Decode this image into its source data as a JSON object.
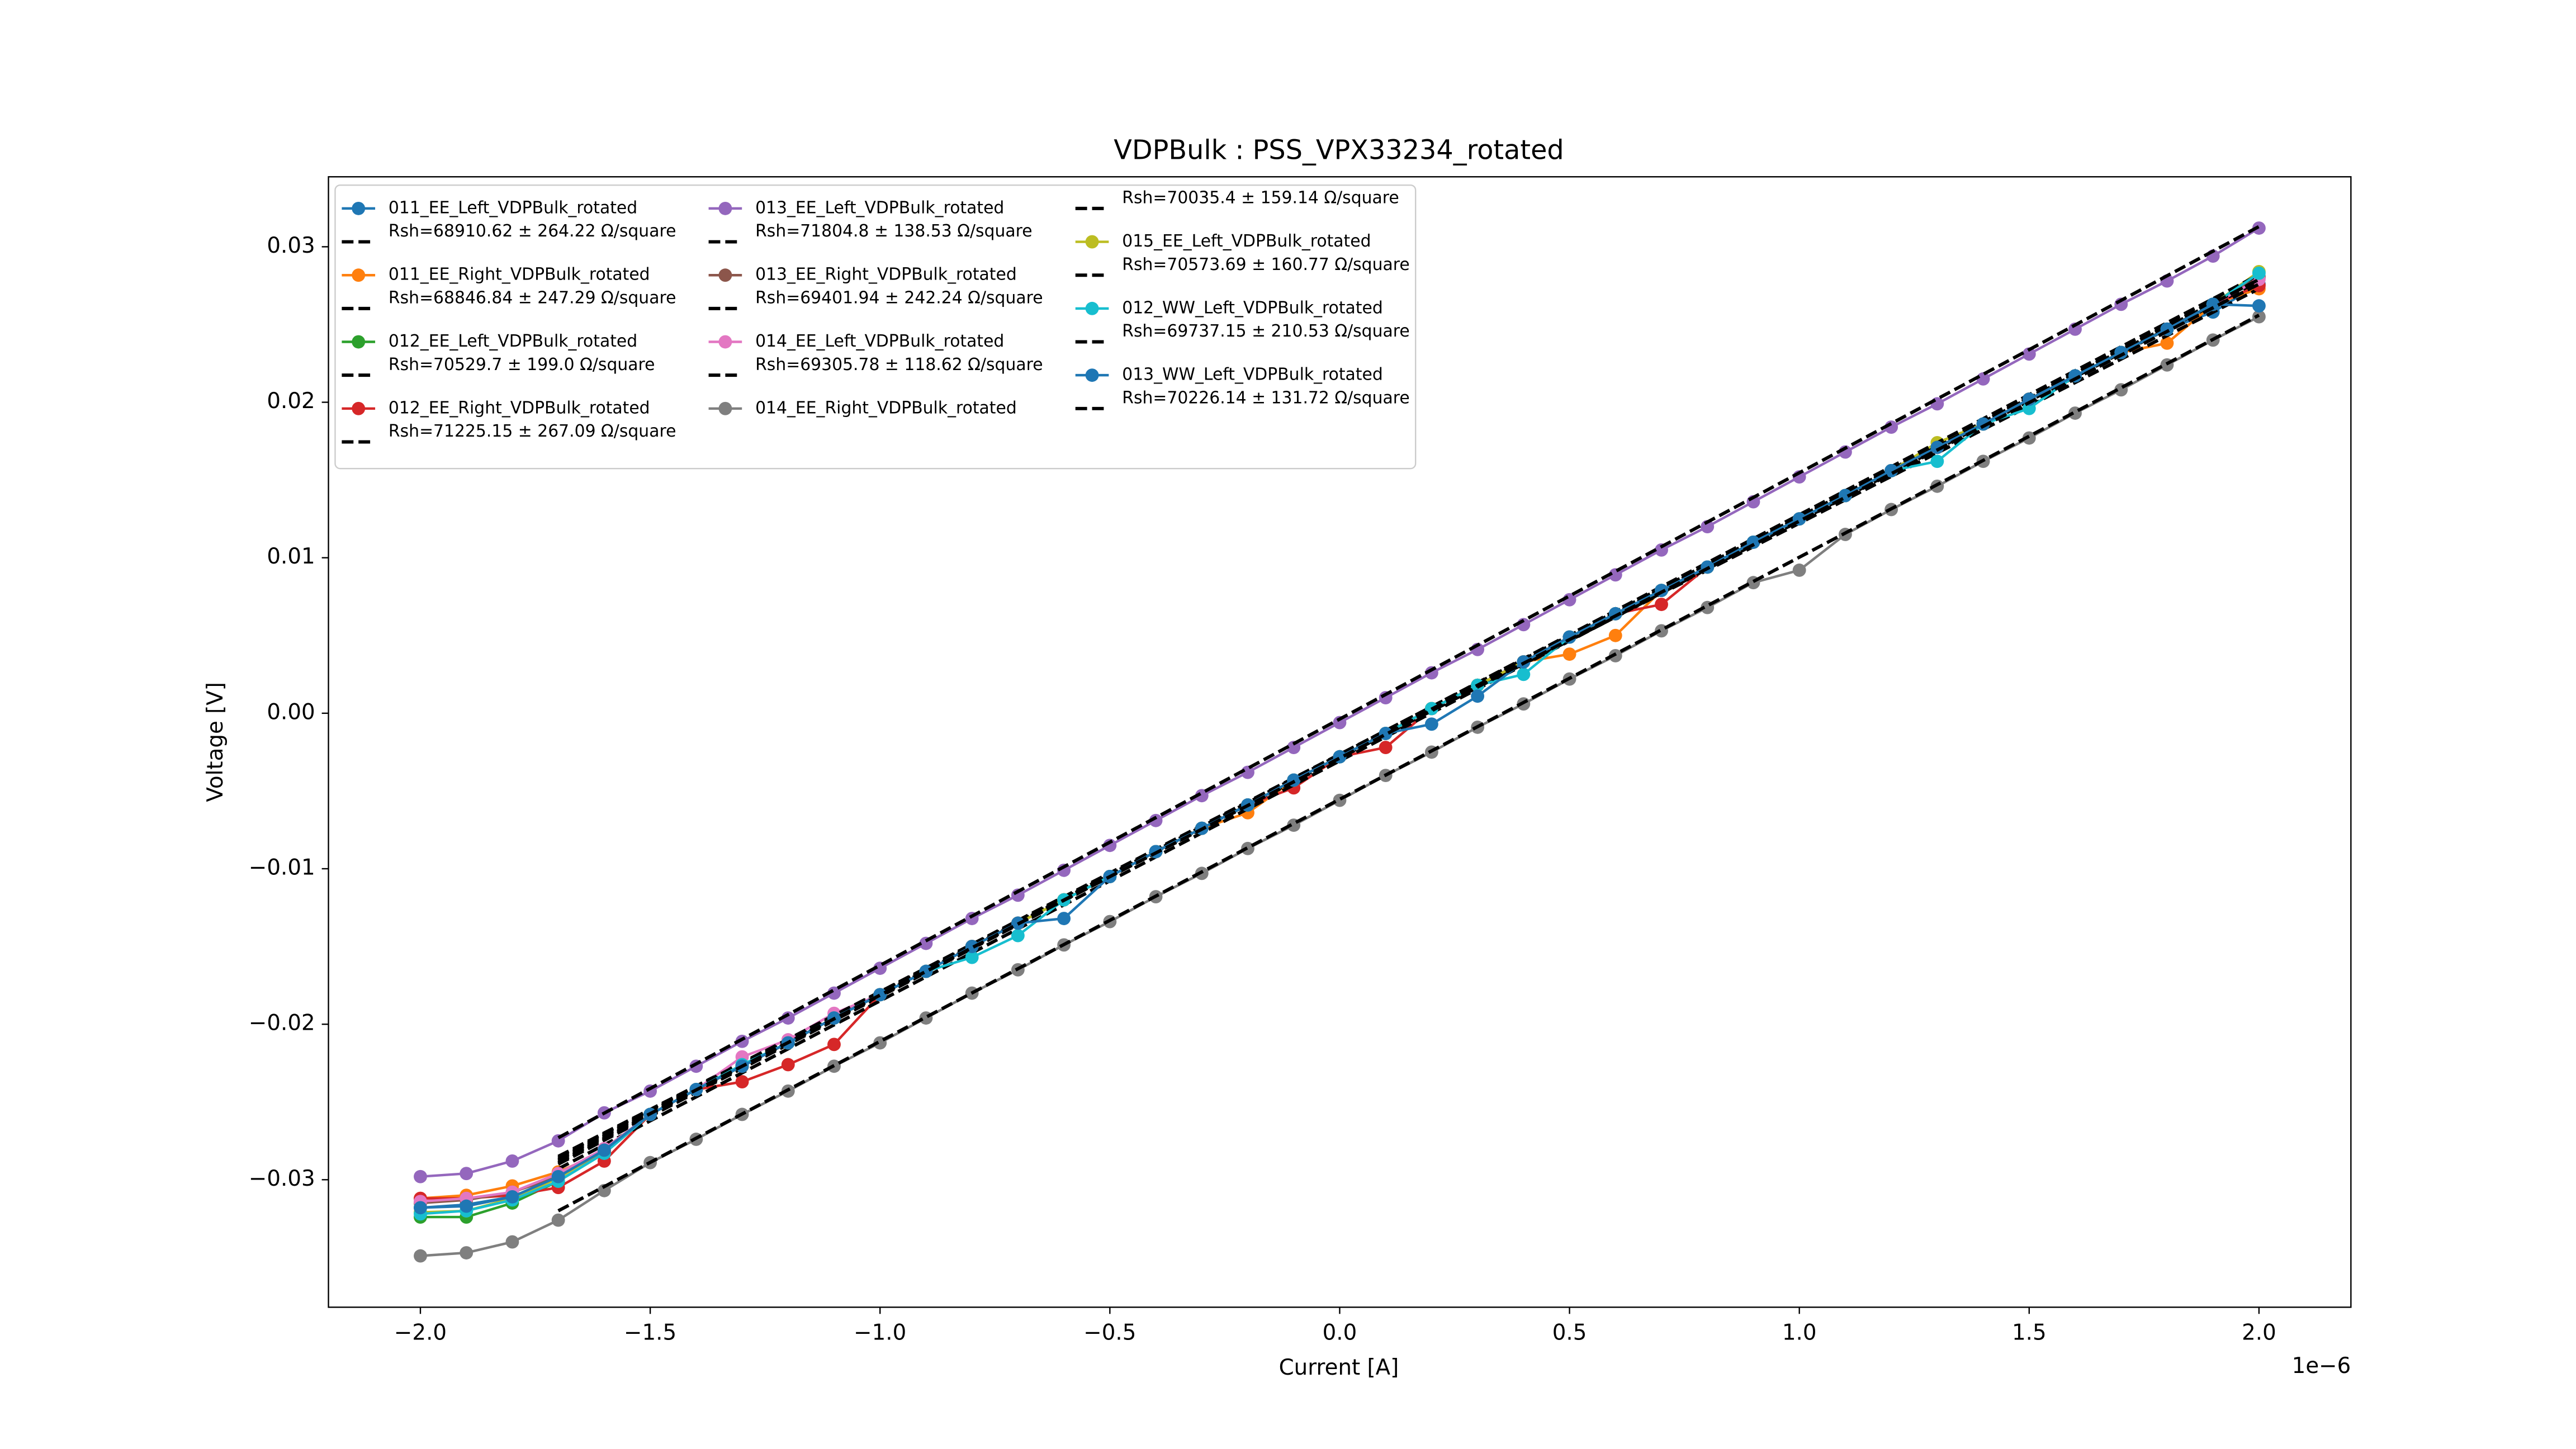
{
  "chart_data": {
    "type": "line",
    "title": "VDPBulk : PSS_VPX33234_rotated",
    "x_label": "Current [A]",
    "y_label": "Voltage [V]",
    "x_offset_label": "1e−6",
    "x": [
      -2.0,
      -1.9,
      -1.8,
      -1.7,
      -1.6,
      -1.5,
      -1.4,
      -1.3,
      -1.2,
      -1.1,
      -1.0,
      -0.9,
      -0.8,
      -0.7,
      -0.6,
      -0.5,
      -0.4,
      -0.3,
      -0.2,
      -0.1,
      0.0,
      0.1,
      0.2,
      0.3,
      0.4,
      0.5,
      0.6,
      0.7,
      0.8,
      0.9,
      1.0,
      1.1,
      1.2,
      1.3,
      1.4,
      1.5,
      1.6,
      1.7,
      1.8,
      1.9,
      2.0
    ],
    "xlim": [
      -2.2,
      2.2
    ],
    "xticks": [
      {
        "value": -2.0,
        "label": "−2.0"
      },
      {
        "value": -1.5,
        "label": "−1.5"
      },
      {
        "value": -1.0,
        "label": "−1.0"
      },
      {
        "value": -0.5,
        "label": "−0.5"
      },
      {
        "value": 0.0,
        "label": "0.0"
      },
      {
        "value": 0.5,
        "label": "0.5"
      },
      {
        "value": 1.0,
        "label": "1.0"
      },
      {
        "value": 1.5,
        "label": "1.5"
      },
      {
        "value": 2.0,
        "label": "2.0"
      }
    ],
    "ylim": [
      -0.0382,
      0.0345
    ],
    "yticks": [
      {
        "value": -0.03,
        "label": "−0.03"
      },
      {
        "value": -0.02,
        "label": "−0.02"
      },
      {
        "value": -0.01,
        "label": "−0.01"
      },
      {
        "value": 0.0,
        "label": "0.00"
      },
      {
        "value": 0.01,
        "label": "0.01"
      },
      {
        "value": 0.02,
        "label": "0.02"
      },
      {
        "value": 0.03,
        "label": "0.03"
      }
    ],
    "grid": false,
    "legend": "upper left",
    "legend_columns": 3,
    "fit_color": "#000000",
    "series": [
      {
        "name": "011_EE_Left_VDPBulk_rotated",
        "color": "#1f77b4",
        "values": [
          -0.0318,
          -0.0316,
          -0.0311,
          -0.0298,
          -0.0282,
          -0.0258,
          -0.0242,
          -0.0227,
          -0.0212,
          -0.0196,
          -0.0181,
          -0.0166,
          -0.015,
          -0.0135,
          -0.012,
          -0.0105,
          -0.0089,
          -0.0074,
          -0.0059,
          -0.0043,
          -0.0028,
          -0.0013,
          0.0003,
          0.0018,
          0.0033,
          0.0049,
          0.0064,
          0.0079,
          0.0094,
          0.011,
          0.0125,
          0.014,
          0.0156,
          0.0171,
          0.0186,
          0.0202,
          0.0217,
          0.0232,
          0.0247,
          0.0258,
          0.0276
        ],
        "fit": {
          "name": "Rsh=68910.62 ± 264.22 Ω/square",
          "x": [
            -1.7,
            2.0
          ],
          "values": [
            -0.0287,
            0.0276
          ]
        }
      },
      {
        "name": "011_EE_Right_VDPBulk_rotated",
        "color": "#ff7f0e",
        "values": [
          -0.0312,
          -0.031,
          -0.0304,
          -0.0295,
          -0.0282,
          -0.0258,
          -0.0242,
          -0.0227,
          -0.0212,
          -0.0196,
          -0.0181,
          -0.0166,
          -0.015,
          -0.0135,
          -0.012,
          -0.0105,
          -0.0089,
          -0.0074,
          -0.0064,
          -0.0043,
          -0.0028,
          -0.0013,
          0.0003,
          0.0018,
          0.0033,
          0.0038,
          0.005,
          0.0079,
          0.0094,
          0.011,
          0.0125,
          0.014,
          0.0156,
          0.0171,
          0.0186,
          0.0202,
          0.0217,
          0.0232,
          0.0238,
          0.0263,
          0.0273
        ],
        "fit": {
          "name": "Rsh=68846.84 ± 247.29 Ω/square",
          "x": [
            -1.7,
            2.0
          ],
          "values": [
            -0.0285,
            0.0273
          ]
        }
      },
      {
        "name": "012_EE_Left_VDPBulk_rotated",
        "color": "#2ca02c",
        "values": [
          -0.0324,
          -0.0324,
          -0.0315,
          -0.0301,
          -0.0283,
          -0.0258,
          -0.0242,
          -0.0227,
          -0.0212,
          -0.0196,
          -0.0181,
          -0.0166,
          -0.015,
          -0.0135,
          -0.012,
          -0.0105,
          -0.0089,
          -0.0074,
          -0.0059,
          -0.0043,
          -0.0028,
          -0.0013,
          0.0003,
          0.0018,
          0.0033,
          0.0049,
          0.0064,
          0.0079,
          0.0094,
          0.011,
          0.0125,
          0.014,
          0.0156,
          0.0171,
          0.0186,
          0.0202,
          0.0217,
          0.0232,
          0.0247,
          0.0263,
          0.028
        ],
        "fit": {
          "name": "Rsh=70529.7 ± 199.0 Ω/square",
          "x": [
            -1.7,
            2.0
          ],
          "values": [
            -0.029,
            0.028
          ]
        }
      },
      {
        "name": "012_EE_Right_VDPBulk_rotated",
        "color": "#d62728",
        "values": [
          -0.0312,
          -0.0312,
          -0.031,
          -0.0305,
          -0.0288,
          -0.0258,
          -0.0242,
          -0.0237,
          -0.0226,
          -0.0213,
          -0.0181,
          -0.0166,
          -0.015,
          -0.0135,
          -0.012,
          -0.0105,
          -0.0089,
          -0.0074,
          -0.0059,
          -0.0048,
          -0.0028,
          -0.0022,
          0.0003,
          0.0018,
          0.0033,
          0.0049,
          0.0064,
          0.007,
          0.0094,
          0.011,
          0.0125,
          0.014,
          0.0156,
          0.0171,
          0.0186,
          0.0202,
          0.0217,
          0.0232,
          0.0247,
          0.0263,
          0.0275
        ],
        "fit": {
          "name": "Rsh=71225.15 ± 267.09 Ω/square",
          "x": [
            -1.7,
            2.0
          ],
          "values": [
            -0.0293,
            0.0278
          ]
        }
      },
      {
        "name": "013_EE_Left_VDPBulk_rotated",
        "color": "#9467bd",
        "values": [
          -0.0298,
          -0.0296,
          -0.0288,
          -0.0275,
          -0.0257,
          -0.0243,
          -0.0227,
          -0.0211,
          -0.0196,
          -0.018,
          -0.0164,
          -0.0148,
          -0.0132,
          -0.0117,
          -0.0101,
          -0.0085,
          -0.0069,
          -0.0053,
          -0.0038,
          -0.0022,
          -0.0006,
          0.001,
          0.0026,
          0.0041,
          0.0057,
          0.0073,
          0.0089,
          0.0105,
          0.012,
          0.0136,
          0.0152,
          0.0168,
          0.0184,
          0.0199,
          0.0215,
          0.0231,
          0.0247,
          0.0263,
          0.0278,
          0.0294,
          0.0312
        ],
        "fit": {
          "name": "Rsh=71804.8 ± 138.53 Ω/square",
          "x": [
            -1.7,
            2.0
          ],
          "values": [
            -0.0273,
            0.0313
          ]
        }
      },
      {
        "name": "013_EE_Right_VDPBulk_rotated",
        "color": "#8c564b",
        "values": [
          -0.0315,
          -0.0313,
          -0.0308,
          -0.0298,
          -0.0282,
          -0.0258,
          -0.0242,
          -0.0227,
          -0.0212,
          -0.0196,
          -0.0181,
          -0.0166,
          -0.015,
          -0.0135,
          -0.012,
          -0.0105,
          -0.0089,
          -0.0074,
          -0.0059,
          -0.0043,
          -0.0028,
          -0.0013,
          0.0003,
          0.0018,
          0.0033,
          0.0049,
          0.0064,
          0.0079,
          0.0094,
          0.011,
          0.0125,
          0.014,
          0.0156,
          0.0171,
          0.0186,
          0.0202,
          0.0217,
          0.0232,
          0.0247,
          0.0263,
          0.0281
        ],
        "fit": {
          "name": "Rsh=69401.94 ± 242.24 Ω/square",
          "x": [
            -1.7,
            2.0
          ],
          "values": [
            -0.0287,
            0.0279
          ]
        }
      },
      {
        "name": "014_EE_Left_VDPBulk_rotated",
        "color": "#e377c2",
        "values": [
          -0.0314,
          -0.0312,
          -0.0308,
          -0.0296,
          -0.028,
          -0.0258,
          -0.0242,
          -0.0221,
          -0.021,
          -0.0193,
          -0.0181,
          -0.0166,
          -0.015,
          -0.0135,
          -0.012,
          -0.0105,
          -0.0089,
          -0.0074,
          -0.0059,
          -0.0043,
          -0.0028,
          -0.0013,
          0.0003,
          0.0018,
          0.0033,
          0.0049,
          0.0064,
          0.0079,
          0.0094,
          0.011,
          0.0125,
          0.014,
          0.0156,
          0.0171,
          0.0186,
          0.0202,
          0.0217,
          0.0232,
          0.0247,
          0.0263,
          0.0279
        ],
        "fit": {
          "name": "Rsh=69305.78 ± 118.62 Ω/square",
          "x": [
            -1.7,
            2.0
          ],
          "values": [
            -0.0286,
            0.0279
          ]
        }
      },
      {
        "name": "014_EE_Right_VDPBulk_rotated",
        "color": "#7f7f7f",
        "values": [
          -0.0349,
          -0.0347,
          -0.034,
          -0.0326,
          -0.0307,
          -0.0289,
          -0.0274,
          -0.0258,
          -0.0243,
          -0.0227,
          -0.0212,
          -0.0196,
          -0.018,
          -0.0165,
          -0.0149,
          -0.0134,
          -0.0118,
          -0.0103,
          -0.0087,
          -0.0072,
          -0.0056,
          -0.004,
          -0.0025,
          -0.0009,
          0.0006,
          0.0022,
          0.0037,
          0.0053,
          0.0068,
          0.0084,
          0.0092,
          0.0115,
          0.0131,
          0.0146,
          0.0162,
          0.0177,
          0.0193,
          0.0208,
          0.0224,
          0.024,
          0.0255
        ],
        "fit": {
          "name": "Rsh=70035.4 ± 159.14 Ω/square",
          "x": [
            -1.7,
            2.0
          ],
          "values": [
            -0.032,
            0.0256
          ]
        }
      },
      {
        "name": "015_EE_Left_VDPBulk_rotated",
        "color": "#bcbd22",
        "values": [
          -0.0321,
          -0.032,
          -0.0312,
          -0.0299,
          -0.0281,
          -0.0258,
          -0.0242,
          -0.0227,
          -0.0212,
          -0.0196,
          -0.0181,
          -0.0166,
          -0.015,
          -0.0135,
          -0.012,
          -0.0105,
          -0.0089,
          -0.0074,
          -0.0059,
          -0.0043,
          -0.0028,
          -0.0013,
          0.0003,
          0.0018,
          0.0033,
          0.0049,
          0.0064,
          0.0079,
          0.0094,
          0.011,
          0.0125,
          0.014,
          0.0156,
          0.0174,
          0.0186,
          0.0202,
          0.0217,
          0.0232,
          0.0247,
          0.0263,
          0.0284
        ],
        "fit": {
          "name": "Rsh=70573.69 ± 160.77 Ω/square",
          "x": [
            -1.7,
            2.0
          ],
          "values": [
            -0.0289,
            0.0282
          ]
        }
      },
      {
        "name": "012_WW_Left_VDPBulk_rotated",
        "color": "#17becf",
        "values": [
          -0.0322,
          -0.032,
          -0.0313,
          -0.0301,
          -0.0283,
          -0.0258,
          -0.0242,
          -0.0226,
          -0.0212,
          -0.0196,
          -0.0181,
          -0.0166,
          -0.0157,
          -0.0143,
          -0.012,
          -0.0105,
          -0.0089,
          -0.0074,
          -0.0059,
          -0.0043,
          -0.0028,
          -0.0013,
          0.0003,
          0.0018,
          0.0025,
          0.0049,
          0.0064,
          0.0079,
          0.0094,
          0.011,
          0.0125,
          0.014,
          0.0156,
          0.0162,
          0.0186,
          0.0196,
          0.0217,
          0.0232,
          0.0247,
          0.0263,
          0.0283
        ],
        "fit": {
          "name": "Rsh=69737.15 ± 210.53 Ω/square",
          "x": [
            -1.7,
            2.0
          ],
          "values": [
            -0.0289,
            0.0279
          ]
        }
      },
      {
        "name": "013_WW_Left_VDPBulk_rotated",
        "color": "#1f77b4",
        "values": [
          -0.0318,
          -0.0317,
          -0.0311,
          -0.0298,
          -0.0281,
          -0.0258,
          -0.0242,
          -0.0227,
          -0.0212,
          -0.0196,
          -0.0181,
          -0.0166,
          -0.015,
          -0.0135,
          -0.0132,
          -0.0105,
          -0.0089,
          -0.0074,
          -0.0059,
          -0.0043,
          -0.0028,
          -0.0013,
          -0.0007,
          0.0011,
          0.0033,
          0.0049,
          0.0064,
          0.0079,
          0.0094,
          0.011,
          0.0125,
          0.014,
          0.0156,
          0.0171,
          0.0186,
          0.0202,
          0.0217,
          0.0232,
          0.0247,
          0.0263,
          0.0262
        ],
        "fit": {
          "name": "Rsh=70226.14 ± 131.72 Ω/square",
          "x": [
            -1.7,
            2.0
          ],
          "values": [
            -0.0288,
            0.0276
          ]
        }
      }
    ]
  }
}
